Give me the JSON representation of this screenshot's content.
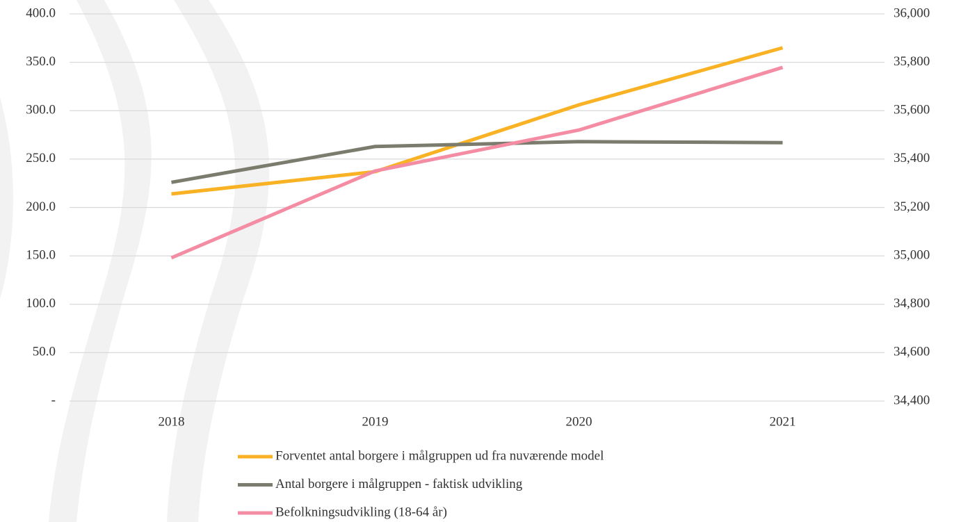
{
  "chart_data": {
    "type": "line",
    "categories": [
      "2018",
      "2019",
      "2020",
      "2021"
    ],
    "series": [
      {
        "name": "Forventet antal borgere i målgruppen ud fra nuværende model",
        "color": "#f9b224",
        "values": [
          214,
          237,
          306,
          365
        ]
      },
      {
        "name": "Antal borgere i målgruppen - faktisk udvikling",
        "color": "#7b7c6e",
        "values": [
          226,
          263,
          268,
          267
        ]
      },
      {
        "name": "Befolkningsudvikling (18-64 år)",
        "color": "#f48ca4",
        "values": [
          34992,
          35351,
          35520,
          35779
        ],
        "axis": "y2"
      }
    ],
    "ylim": [
      0,
      400
    ],
    "yticks": [
      {
        "value": 0,
        "label": "-"
      },
      {
        "value": 50,
        "label": "50.0"
      },
      {
        "value": 100,
        "label": "100.0"
      },
      {
        "value": 150,
        "label": "150.0"
      },
      {
        "value": 200,
        "label": "200.0"
      },
      {
        "value": 250,
        "label": "250.0"
      },
      {
        "value": 300,
        "label": "300.0"
      },
      {
        "value": 350,
        "label": "350.0"
      },
      {
        "value": 400,
        "label": "400.0"
      }
    ],
    "y2lim": [
      34400,
      36000
    ],
    "y2ticks": [
      {
        "value": 34400,
        "label": "34,400"
      },
      {
        "value": 34600,
        "label": "34,600"
      },
      {
        "value": 34800,
        "label": "34,800"
      },
      {
        "value": 35000,
        "label": "35,000"
      },
      {
        "value": 35200,
        "label": "35,200"
      },
      {
        "value": 35400,
        "label": "35,400"
      },
      {
        "value": 35600,
        "label": "35,600"
      },
      {
        "value": 35800,
        "label": "35,800"
      },
      {
        "value": 36000,
        "label": "36,000"
      }
    ],
    "grid": true,
    "legend": "bottom"
  }
}
